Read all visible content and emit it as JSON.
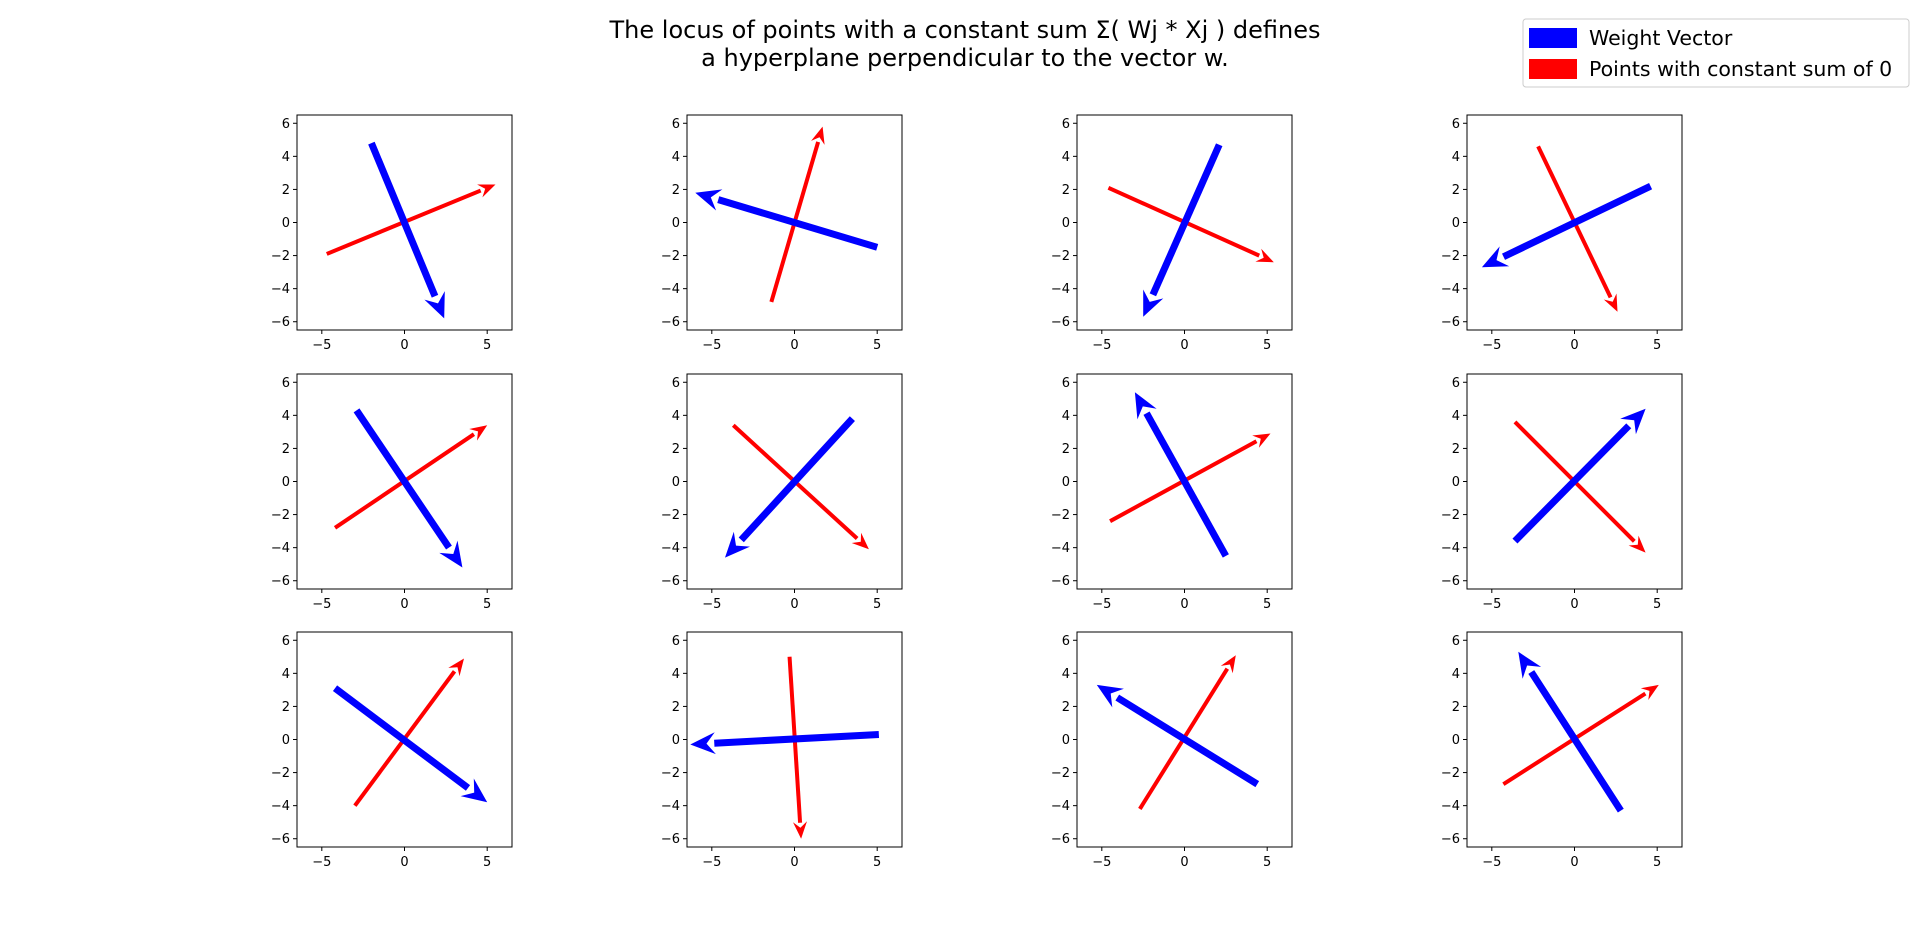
{
  "figure": {
    "title_line1": "The locus of points with a constant sum Σ( Wj * Xj ) defines",
    "title_line2": "a hyperplane perpendicular to the vector w.",
    "legend": [
      {
        "label": "Weight Vector",
        "color": "#0000ff"
      },
      {
        "label": "Points with constant sum of 0",
        "color": "#ff0000"
      }
    ]
  },
  "chart_data": {
    "type": "quiver",
    "rows": 3,
    "cols": 4,
    "xlim": [
      -6.5,
      6.5
    ],
    "ylim": [
      -6.5,
      6.5
    ],
    "xticks": [
      "−5",
      "0",
      "5"
    ],
    "yticks": [
      "6",
      "4",
      "2",
      "0",
      "−2",
      "−4",
      "−6"
    ],
    "series_colors": {
      "weight": "#0000ff",
      "points": "#ff0000"
    },
    "panels": [
      {
        "weight": {
          "tail": [
            -2.0,
            4.8
          ],
          "head": [
            2.4,
            -5.8
          ]
        },
        "points": {
          "tail": [
            -4.7,
            -1.9
          ],
          "head": [
            5.5,
            2.3
          ]
        }
      },
      {
        "weight": {
          "tail": [
            5.0,
            -1.5
          ],
          "head": [
            -6.0,
            1.8
          ]
        },
        "points": {
          "tail": [
            -1.4,
            -4.8
          ],
          "head": [
            1.7,
            5.8
          ]
        }
      },
      {
        "weight": {
          "tail": [
            2.1,
            4.7
          ],
          "head": [
            -2.5,
            -5.7
          ]
        },
        "points": {
          "tail": [
            -4.6,
            2.1
          ],
          "head": [
            5.4,
            -2.4
          ]
        }
      },
      {
        "weight": {
          "tail": [
            4.6,
            2.2
          ],
          "head": [
            -5.6,
            -2.7
          ]
        },
        "points": {
          "tail": [
            -2.2,
            4.6
          ],
          "head": [
            2.6,
            -5.4
          ]
        }
      },
      {
        "weight": {
          "tail": [
            -2.9,
            4.3
          ],
          "head": [
            3.5,
            -5.2
          ]
        },
        "points": {
          "tail": [
            -4.2,
            -2.8
          ],
          "head": [
            5.0,
            3.4
          ]
        }
      },
      {
        "weight": {
          "tail": [
            3.5,
            3.8
          ],
          "head": [
            -4.2,
            -4.6
          ]
        },
        "points": {
          "tail": [
            -3.7,
            3.4
          ],
          "head": [
            4.5,
            -4.1
          ]
        }
      },
      {
        "weight": {
          "tail": [
            2.5,
            -4.5
          ],
          "head": [
            -3.0,
            5.4
          ]
        },
        "points": {
          "tail": [
            -4.5,
            -2.4
          ],
          "head": [
            5.2,
            2.9
          ]
        }
      },
      {
        "weight": {
          "tail": [
            -3.6,
            -3.6
          ],
          "head": [
            4.3,
            4.4
          ]
        },
        "points": {
          "tail": [
            -3.6,
            3.6
          ],
          "head": [
            4.3,
            -4.3
          ]
        }
      },
      {
        "weight": {
          "tail": [
            -4.2,
            3.1
          ],
          "head": [
            5.0,
            -3.8
          ]
        },
        "points": {
          "tail": [
            -3.0,
            -4.0
          ],
          "head": [
            3.6,
            4.9
          ]
        }
      },
      {
        "weight": {
          "tail": [
            5.1,
            0.3
          ],
          "head": [
            -6.3,
            -0.3
          ]
        },
        "points": {
          "tail": [
            -0.3,
            5.0
          ],
          "head": [
            0.4,
            -6.0
          ]
        }
      },
      {
        "weight": {
          "tail": [
            4.4,
            -2.7
          ],
          "head": [
            -5.3,
            3.3
          ]
        },
        "points": {
          "tail": [
            -2.7,
            -4.2
          ],
          "head": [
            3.1,
            5.1
          ]
        }
      },
      {
        "weight": {
          "tail": [
            2.8,
            -4.3
          ],
          "head": [
            -3.4,
            5.3
          ]
        },
        "points": {
          "tail": [
            -4.3,
            -2.7
          ],
          "head": [
            5.1,
            3.3
          ]
        }
      }
    ]
  }
}
